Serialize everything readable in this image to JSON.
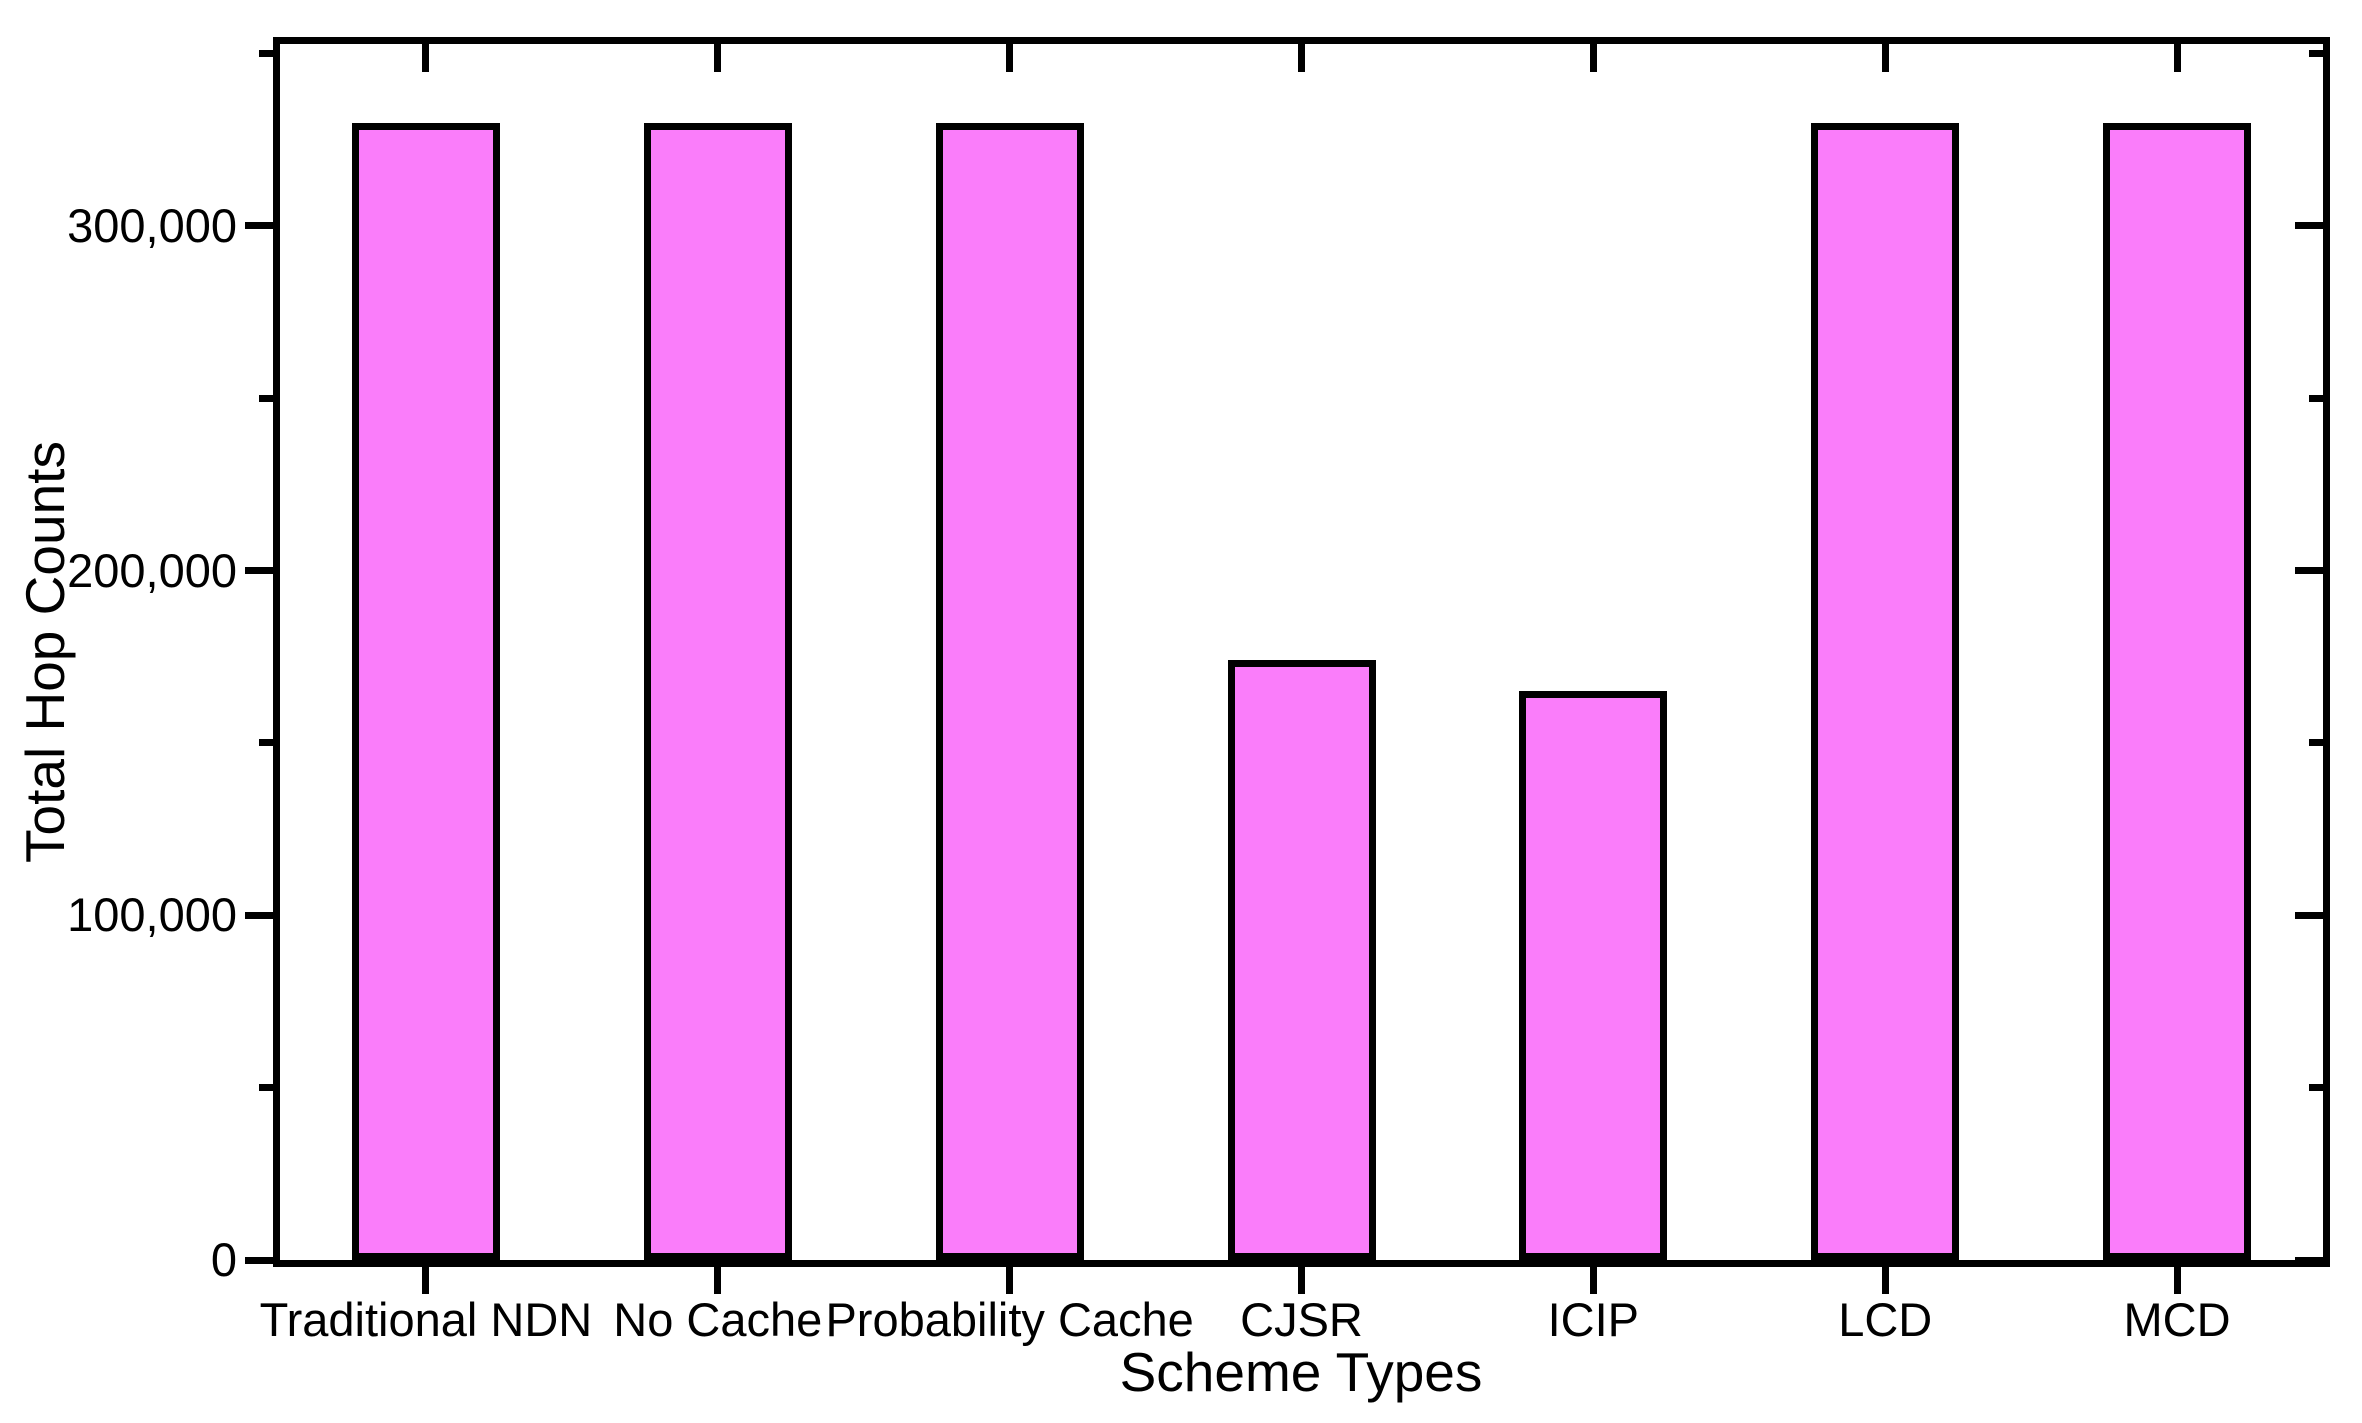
{
  "figure": {
    "background": "#FFFFFF",
    "frame_color": "#000000"
  },
  "chart_data": {
    "type": "bar",
    "title": "",
    "xlabel": "Scheme Types",
    "ylabel": "Total Hop Counts",
    "categories": [
      "Traditional NDN",
      "No Cache",
      "Probability Cache",
      "CJSR",
      "ICIP",
      "LCD",
      "MCD"
    ],
    "values": [
      330000,
      330000,
      330000,
      174000,
      165000,
      330000,
      330000
    ],
    "ylim": [
      0,
      352800
    ],
    "yticks_major": [
      0,
      100000,
      200000,
      300000
    ],
    "ytick_labels": [
      "0",
      "100,000",
      "200,000",
      "300,000"
    ],
    "yticks_minor": [
      50000,
      150000,
      250000,
      350000
    ],
    "bar_fill_color": "#FA7DFA",
    "bar_border_color": "#000000",
    "grid": false,
    "legend": "none"
  }
}
